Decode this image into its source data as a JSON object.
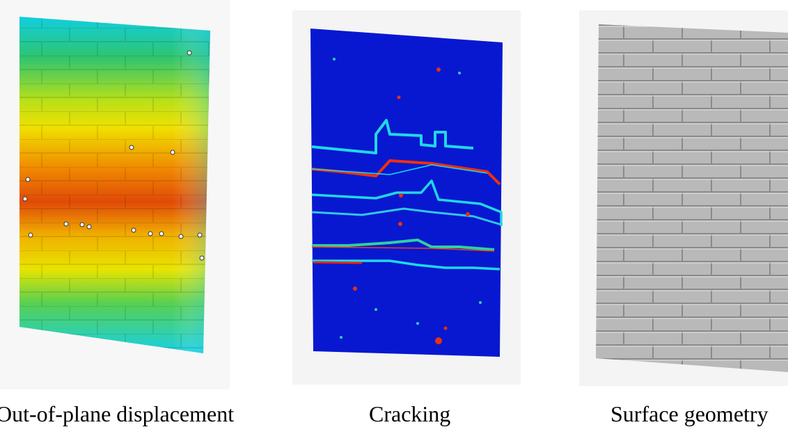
{
  "figure": {
    "panels": [
      {
        "id": "displacement",
        "caption": "Out-of-plane displacement",
        "colormap": [
          "#00d8e8",
          "#28c040",
          "#e8e000",
          "#f07000",
          "#d82000"
        ]
      },
      {
        "id": "cracking",
        "caption": "Cracking",
        "colormap": [
          "#0018d8",
          "#00c8e0",
          "#e02000"
        ]
      },
      {
        "id": "surface",
        "caption": "Surface geometry",
        "colormap": [
          "#b8b8b8"
        ]
      }
    ]
  }
}
